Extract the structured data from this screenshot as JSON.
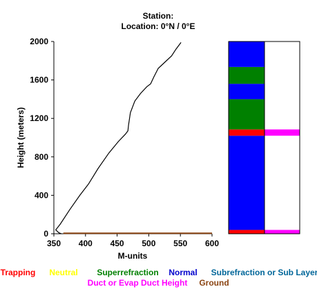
{
  "header": {
    "station_line": "Station:",
    "location_line": "Location:   0°N /   0°E"
  },
  "chart_data": {
    "type": "line",
    "xlabel": "M-units",
    "ylabel": "Height (meters)",
    "xlim": [
      350,
      600
    ],
    "ylim": [
      0,
      2000
    ],
    "x_ticks": [
      "350",
      "400",
      "450",
      "500",
      "550",
      "600"
    ],
    "y_ticks": [
      "0",
      "400",
      "800",
      "1200",
      "1600",
      "2000"
    ],
    "series": [
      {
        "color": "#000000",
        "points": [
          [
            362,
            0
          ],
          [
            358,
            10
          ],
          [
            353,
            40
          ],
          [
            360,
            100
          ],
          [
            375,
            250
          ],
          [
            391,
            400
          ],
          [
            405,
            520
          ],
          [
            420,
            680
          ],
          [
            437,
            840
          ],
          [
            452,
            960
          ],
          [
            463,
            1035
          ],
          [
            467,
            1070
          ],
          [
            468,
            1130
          ],
          [
            471,
            1260
          ],
          [
            478,
            1380
          ],
          [
            487,
            1460
          ],
          [
            497,
            1530
          ],
          [
            503,
            1560
          ],
          [
            508,
            1630
          ],
          [
            515,
            1720
          ],
          [
            523,
            1770
          ],
          [
            536,
            1850
          ],
          [
            543,
            1920
          ],
          [
            551,
            1990
          ]
        ]
      },
      {
        "color": "#8B4513",
        "points": [
          [
            365,
            5
          ],
          [
            600,
            5
          ]
        ]
      }
    ],
    "layer_bars": {
      "height_range": [
        0,
        2000
      ],
      "left_column": [
        {
          "from": 0,
          "to": 40,
          "color": "#ff0000"
        },
        {
          "from": 40,
          "to": 1020,
          "color": "#0000ff"
        },
        {
          "from": 1020,
          "to": 1085,
          "color": "#ff0000"
        },
        {
          "from": 1085,
          "to": 1400,
          "color": "#008000"
        },
        {
          "from": 1400,
          "to": 1560,
          "color": "#0000ff"
        },
        {
          "from": 1560,
          "to": 1735,
          "color": "#008000"
        },
        {
          "from": 1735,
          "to": 2000,
          "color": "#0000ff"
        }
      ],
      "right_column": [
        {
          "from": 0,
          "to": 40,
          "color": "#ff00ff"
        },
        {
          "from": 1020,
          "to": 1085,
          "color": "#ff00ff"
        }
      ]
    }
  },
  "legend": {
    "row1": [
      {
        "label": "Trapping",
        "color": "#ff0000"
      },
      {
        "label": "Neutral",
        "color": "#ffff00"
      },
      {
        "label": "Superrefraction",
        "color": "#008000"
      },
      {
        "label": "Normal",
        "color": "#0000cc"
      },
      {
        "label": "Subrefraction or Sub Layer",
        "color": "#006699"
      }
    ],
    "row2": [
      {
        "label": "Duct or Evap Duct Height",
        "color": "#ff00ff"
      },
      {
        "label": "Ground",
        "color": "#8B4513"
      }
    ]
  }
}
